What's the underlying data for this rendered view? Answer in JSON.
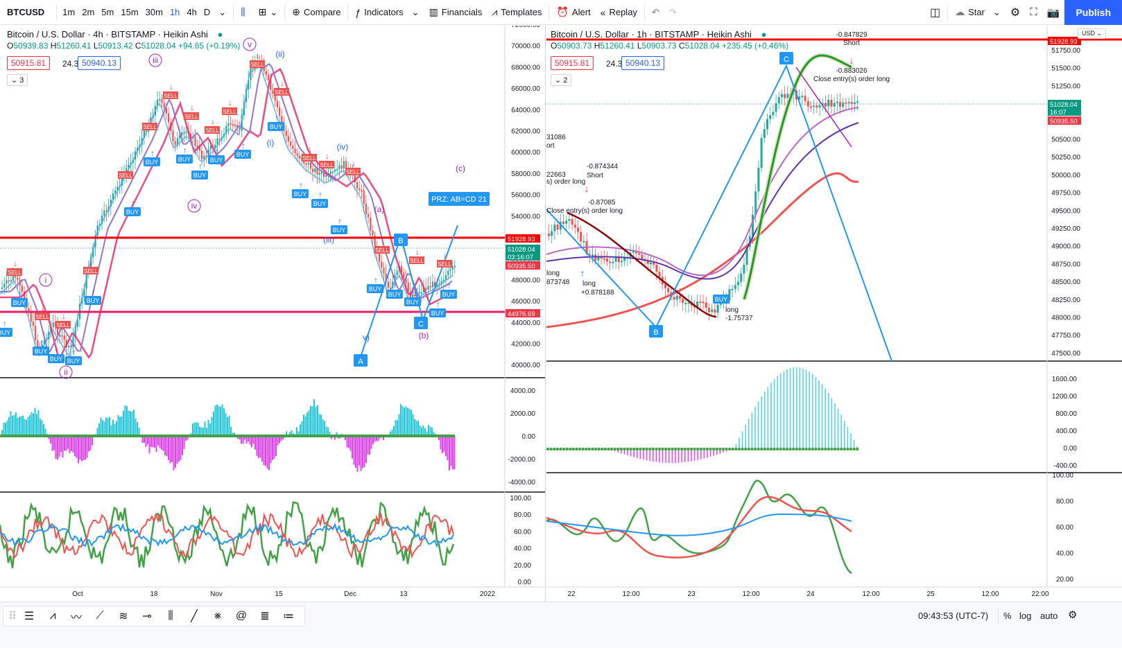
{
  "toolbar": {
    "symbol": "BTCUSD",
    "intervals": [
      "1m",
      "2m",
      "5m",
      "15m",
      "30m",
      "1h",
      "4h",
      "D"
    ],
    "active_interval": "1h",
    "compare": "Compare",
    "indicators": "Indicators",
    "financials": "Financials",
    "templates": "Templates",
    "alert": "Alert",
    "replay": "Replay",
    "layout_name": "Star",
    "publish": "Publish"
  },
  "left_chart": {
    "title": "Bitcoin / U.S. Dollar · 4h · BITSTAMP · Heikin Ashi",
    "ohlc": {
      "o_label": "O",
      "o": "50939.83",
      "h_label": "H",
      "h": "51260.41",
      "l_label": "L",
      "l": "50913.42",
      "c_label": "C",
      "c": "51028.04",
      "chg": "+94.65 (+0.19%)"
    },
    "bid": "50915.81",
    "spread": "24.32",
    "ask": "50940.13",
    "collapse": "3",
    "price_axis": [
      "72000.00",
      "70000.00",
      "68000.00",
      "66000.00",
      "64000.00",
      "62000.00",
      "60000.00",
      "58000.00",
      "56000.00",
      "54000.00",
      "52000.00",
      "50000.00",
      "48000.00",
      "46000.00",
      "44000.00",
      "42000.00",
      "40000.00"
    ],
    "tags": {
      "resistance": "51928.93",
      "last": "51028.04",
      "countdown": "03:16:07",
      "bid": "50935.50",
      "support": "44976.69"
    },
    "wave_labels": [
      "v",
      "iii",
      "(ii)",
      "(i)",
      "(iv)",
      "iv",
      "i",
      "ii",
      "(iii)",
      "(a)",
      "(b)",
      "(c)",
      "v)"
    ],
    "prz": "PRZ: AB=CD 21",
    "points": {
      "a": "A",
      "b": "B",
      "c": "C"
    },
    "macd_axis": [
      "4000.00",
      "2000.00",
      "0.00",
      "-2000.00",
      "-4000.00"
    ],
    "osc_axis": [
      "100.00",
      "80.00",
      "60.00",
      "40.00",
      "20.00",
      "0.00"
    ],
    "dates": [
      "Oct",
      "18",
      "Nov",
      "15",
      "Dec",
      "13",
      "2022"
    ]
  },
  "right_chart": {
    "title": "Bitcoin / U.S. Dollar · 1h · BITSTAMP · Heikin Ashi",
    "ohlc": {
      "o_label": "O",
      "o": "50903.73",
      "h_label": "H",
      "h": "51260.41",
      "l_label": "L",
      "l": "50903.73",
      "c_label": "C",
      "c": "51028.04",
      "chg": "+235.45 (+0.46%)"
    },
    "bid": "50915.81",
    "spread": "24.32",
    "ask": "50940.13",
    "collapse": "2",
    "currency": "USD",
    "price_axis": [
      "51750.00",
      "51500.00",
      "51250.00",
      "51000.00",
      "50750.00",
      "50500.00",
      "50250.00",
      "50000.00",
      "49750.00",
      "49500.00",
      "49250.00",
      "49000.00",
      "48750.00",
      "48500.00",
      "48250.00",
      "48000.00",
      "47750.00",
      "47500.00"
    ],
    "tags": {
      "resistance": "51928.93",
      "last": "51028.04",
      "countdown": "16:07",
      "bid": "50935.50"
    },
    "annotations": [
      "-0.847829",
      "Short",
      "-0.883026",
      "Close entry(s) order long",
      "31086",
      "ort",
      "22663",
      "s) order long",
      "-0.874344",
      "Short",
      "-0.87085",
      "Close entry(s) order long",
      "long",
      "873748",
      "long",
      "+0.878188",
      "long",
      "-1.75737"
    ],
    "points": {
      "b": "B",
      "c": "C"
    },
    "macd_axis": [
      "1600.00",
      "1200.00",
      "800.00",
      "400.00",
      "0.00",
      "-400.00"
    ],
    "osc_axis": [
      "100.00",
      "80.00",
      "60.00",
      "40.00",
      "20.00"
    ],
    "dates": [
      "22",
      "12:00",
      "23",
      "12:00",
      "24",
      "12:00",
      "25",
      "12:00",
      "22:00"
    ]
  },
  "statusbar": {
    "time": "09:43:53 (UTC-7)",
    "percent": "%",
    "log": "log",
    "auto": "auto"
  }
}
